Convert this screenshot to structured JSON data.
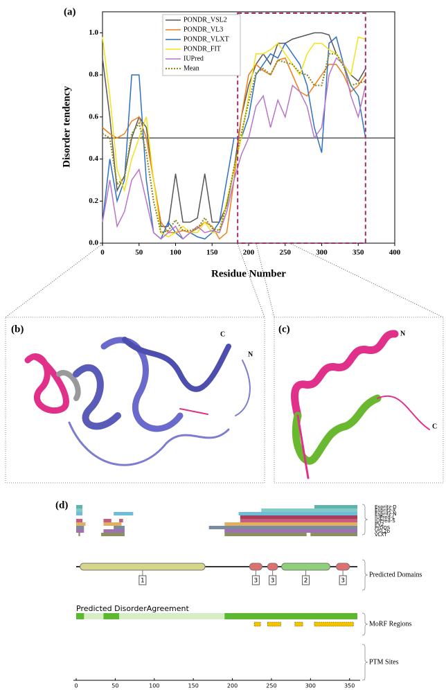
{
  "chart_data": [
    {
      "type": "line",
      "label": "(a)",
      "ylabel": "Disorder tendency",
      "xlabel": "Residue Number",
      "xlim": [
        0,
        400
      ],
      "xticks": [
        0,
        50,
        100,
        150,
        200,
        250,
        300,
        350,
        400
      ],
      "ylim": [
        0,
        1.1
      ],
      "yticks": [
        {
          "value": 0,
          "label": "0.0"
        },
        0.2,
        0.4,
        0.6,
        0.8,
        {
          "value": 1,
          "label": "1.0"
        }
      ],
      "threshold": 0.5,
      "highlight": [
        185,
        360
      ],
      "highlight_color": "#a0306a",
      "legend": "upper center",
      "x": [
        0,
        10,
        20,
        30,
        40,
        50,
        60,
        70,
        80,
        90,
        100,
        110,
        120,
        130,
        140,
        150,
        160,
        170,
        180,
        190,
        200,
        210,
        220,
        230,
        240,
        250,
        260,
        270,
        280,
        290,
        300,
        310,
        320,
        330,
        340,
        350,
        360
      ],
      "series": [
        {
          "name": "PONDR_VSL2",
          "color": "#555555",
          "values": [
            0.88,
            0.6,
            0.25,
            0.32,
            0.5,
            0.6,
            0.55,
            0.3,
            0.08,
            0.08,
            0.33,
            0.1,
            0.1,
            0.12,
            0.33,
            0.1,
            0.1,
            0.18,
            0.35,
            0.6,
            0.75,
            0.85,
            0.9,
            0.85,
            0.95,
            0.95,
            0.97,
            0.98,
            0.99,
            1.0,
            1.0,
            0.99,
            0.9,
            0.85,
            0.8,
            0.77,
            0.83
          ]
        },
        {
          "name": "PONDR_VL3",
          "color": "#f07d1a",
          "values": [
            0.55,
            0.52,
            0.5,
            0.52,
            0.58,
            0.6,
            0.5,
            0.3,
            0.1,
            0.05,
            0.05,
            0.06,
            0.05,
            0.07,
            0.1,
            0.08,
            0.02,
            0.05,
            0.3,
            0.6,
            0.8,
            0.85,
            0.82,
            0.8,
            0.87,
            0.88,
            0.8,
            0.72,
            0.7,
            0.75,
            0.8,
            0.85,
            0.85,
            0.8,
            0.72,
            0.75,
            0.8
          ]
        },
        {
          "name": "PONDR_VLXT",
          "color": "#2d6fc4",
          "values": [
            0.1,
            0.4,
            0.2,
            0.3,
            0.8,
            0.8,
            0.3,
            0.05,
            0.02,
            0.1,
            0.05,
            0.02,
            0.05,
            0.03,
            0.02,
            0.05,
            0.1,
            0.3,
            0.5,
            0.5,
            0.6,
            0.8,
            0.85,
            0.9,
            0.88,
            0.95,
            0.9,
            0.85,
            0.75,
            0.55,
            0.43,
            0.95,
            0.98,
            0.85,
            0.75,
            0.7,
            0.5
          ]
        },
        {
          "name": "PONDR_FIT",
          "color": "#f2e21c",
          "values": [
            0.98,
            0.7,
            0.35,
            0.25,
            0.4,
            0.5,
            0.6,
            0.3,
            0.05,
            0.03,
            0.05,
            0.08,
            0.05,
            0.05,
            0.1,
            0.05,
            0.05,
            0.2,
            0.35,
            0.5,
            0.7,
            0.9,
            0.9,
            0.92,
            0.95,
            0.9,
            0.85,
            0.8,
            0.9,
            0.95,
            0.95,
            0.92,
            0.9,
            0.85,
            0.8,
            0.98,
            0.97
          ]
        },
        {
          "name": "IUPred",
          "color": "#b874c8",
          "values": [
            0.1,
            0.3,
            0.08,
            0.15,
            0.3,
            0.35,
            0.2,
            0.05,
            0.02,
            0.05,
            0.08,
            0.02,
            0.05,
            0.08,
            0.05,
            0.06,
            0.05,
            0.15,
            0.3,
            0.42,
            0.5,
            0.65,
            0.7,
            0.55,
            0.68,
            0.6,
            0.75,
            0.72,
            0.65,
            0.5,
            0.55,
            0.8,
            0.88,
            0.85,
            0.7,
            0.6,
            0.75
          ]
        },
        {
          "name": "Mean",
          "color": "#8a8a20",
          "dash": true,
          "values": [
            0.52,
            0.5,
            0.28,
            0.31,
            0.52,
            0.57,
            0.43,
            0.2,
            0.05,
            0.06,
            0.11,
            0.06,
            0.06,
            0.07,
            0.12,
            0.07,
            0.06,
            0.18,
            0.36,
            0.52,
            0.67,
            0.81,
            0.83,
            0.8,
            0.87,
            0.86,
            0.85,
            0.81,
            0.8,
            0.75,
            0.75,
            0.9,
            0.9,
            0.84,
            0.75,
            0.76,
            0.77
          ]
        }
      ]
    },
    {
      "type": "track",
      "label": "(d)",
      "xlim": [
        0,
        360
      ],
      "xticks": [
        0,
        50,
        100,
        150,
        200,
        250,
        300,
        350
      ],
      "predictors": [
        {
          "name": "Espritz-D",
          "color": "#5fb3ad",
          "regions": [
            [
              0,
              8
            ],
            [
              305,
              360
            ]
          ]
        },
        {
          "name": "Espritz-X",
          "color": "#82cbc6",
          "regions": [
            [
              0,
              8
            ],
            [
              237,
              360
            ]
          ]
        },
        {
          "name": "Espritz-N",
          "color": "#6fbcd9",
          "regions": [
            [
              0,
              8
            ],
            [
              48,
              73
            ],
            [
              208,
              360
            ]
          ]
        },
        {
          "name": "IUPred-L",
          "color": "#a8405c",
          "regions": [
            [
              210,
              360
            ]
          ]
        },
        {
          "name": "IUPred-S",
          "color": "#c85c7c",
          "regions": [
            [
              0,
              8
            ],
            [
              35,
              45
            ],
            [
              55,
              60
            ],
            [
              210,
              360
            ]
          ]
        },
        {
          "name": "PV2",
          "color": "#e0b060",
          "regions": [
            [
              0,
              12
            ],
            [
              35,
              58
            ],
            [
              190,
              360
            ]
          ]
        },
        {
          "name": "PrDOS",
          "color": "#7a8aa0",
          "regions": [
            [
              0,
              10
            ],
            [
              48,
              62
            ],
            [
              170,
              360
            ]
          ]
        },
        {
          "name": "VSL2b",
          "color": "#a070b0",
          "regions": [
            [
              0,
              10
            ],
            [
              35,
              62
            ],
            [
              190,
              360
            ]
          ]
        },
        {
          "name": "VLXT",
          "color": "#8a9060",
          "regions": [
            [
              3,
              5
            ],
            [
              32,
              62
            ],
            [
              190,
              295
            ],
            [
              300,
              360
            ]
          ]
        }
      ],
      "domains_label": "Predicted Domains",
      "domains": [
        {
          "label": "1",
          "start": 5,
          "end": 165,
          "color": "#d6d68a"
        },
        {
          "label": "3",
          "start": 222,
          "end": 238,
          "color": "#e07070"
        },
        {
          "label": "3",
          "start": 245,
          "end": 258,
          "color": "#e07070"
        },
        {
          "label": "2",
          "start": 263,
          "end": 325,
          "color": "#8fd07a"
        },
        {
          "label": "3",
          "start": 333,
          "end": 350,
          "color": "#e07070"
        }
      ],
      "agreement_title": "Predicted DisorderAgreement",
      "agreement_regions": [
        [
          0,
          10
        ],
        [
          35,
          55
        ],
        [
          190,
          360
        ]
      ],
      "morf_label": "MoRF Regions",
      "morf_regions": [
        [
          228,
          236
        ],
        [
          245,
          262
        ],
        [
          280,
          290
        ],
        [
          305,
          355
        ]
      ],
      "ptm_label": "PTM Sites"
    }
  ],
  "panel_b": {
    "label": "(b)",
    "termini": [
      "C",
      "N"
    ]
  },
  "panel_c": {
    "label": "(c)",
    "termini": [
      "N",
      "C"
    ]
  }
}
